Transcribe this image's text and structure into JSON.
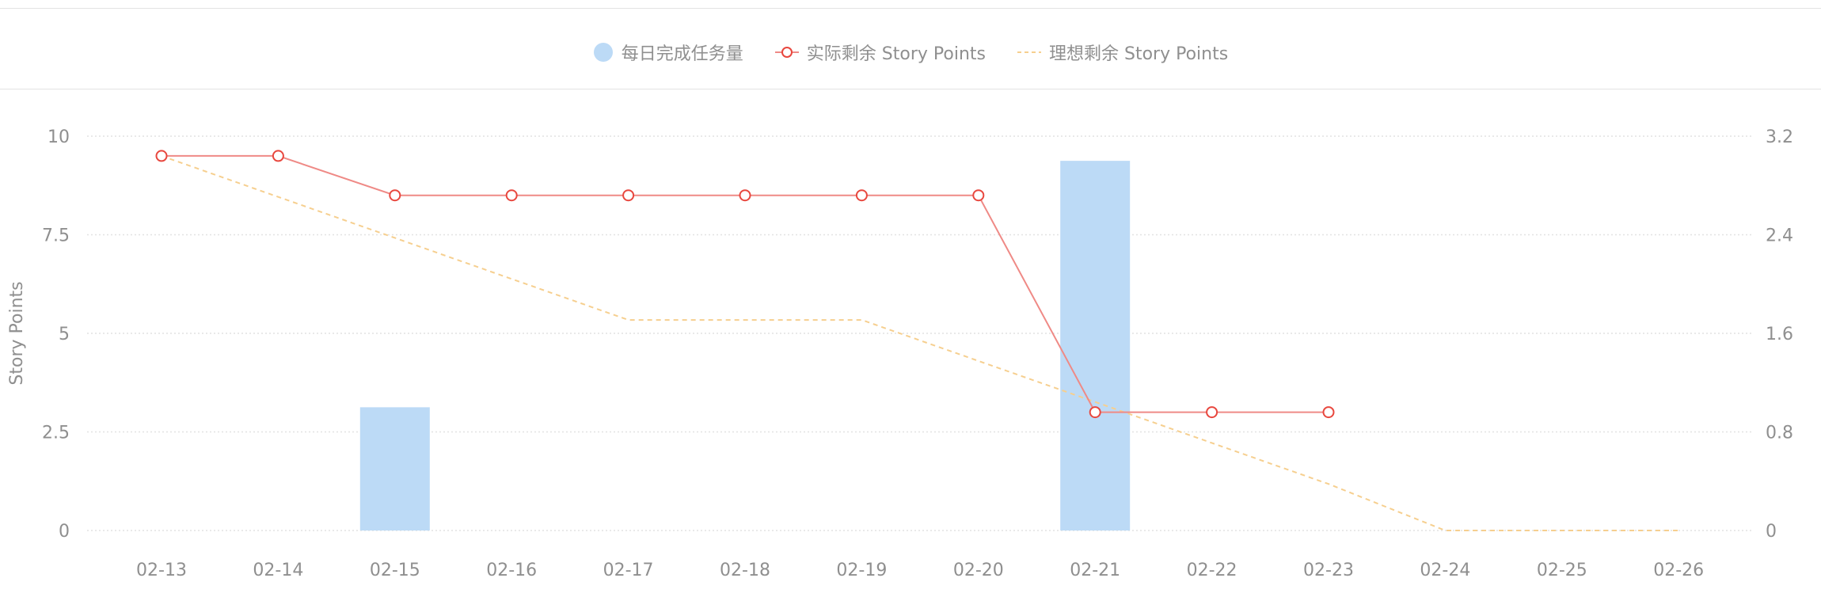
{
  "legend": {
    "items": [
      {
        "label": "每日完成任务量",
        "type": "bar"
      },
      {
        "label": "实际剩余 Story Points",
        "type": "line"
      },
      {
        "label": "理想剩余 Story Points",
        "type": "dashed"
      }
    ]
  },
  "colors": {
    "bar": "#bcdaf6",
    "actual": "#ef8a86",
    "actual_marker": "#e8473e",
    "ideal": "#f6cf8f",
    "grid": "#e2e2e2",
    "tick_text": "#8f8f8f"
  },
  "chart_data": {
    "type": "bar",
    "categories": [
      "02-13",
      "02-14",
      "02-15",
      "02-16",
      "02-17",
      "02-18",
      "02-19",
      "02-20",
      "02-21",
      "02-22",
      "02-23",
      "02-24",
      "02-25",
      "02-26"
    ],
    "y_left": {
      "label": "Story Points",
      "ticks": [
        "0",
        "2.5",
        "5",
        "7.5",
        "10"
      ],
      "min": 0,
      "max": 10
    },
    "y_right": {
      "label": "",
      "ticks": [
        "0",
        "0.8",
        "1.6",
        "2.4",
        "3.2"
      ],
      "min": 0,
      "max": 3.2
    },
    "grid": true,
    "legend_position": "top-center",
    "series": [
      {
        "name": "每日完成任务量",
        "type": "bar",
        "axis": "right",
        "values": [
          0,
          0,
          1,
          0,
          0,
          0,
          0,
          0,
          3,
          0,
          0,
          0,
          0,
          0
        ]
      },
      {
        "name": "实际剩余 Story Points",
        "type": "line",
        "axis": "left",
        "values": [
          9.5,
          9.5,
          8.5,
          8.5,
          8.5,
          8.5,
          8.5,
          8.5,
          3,
          3,
          3,
          null,
          null,
          null
        ]
      },
      {
        "name": "理想剩余 Story Points",
        "type": "line-dashed",
        "axis": "left",
        "values": [
          9.5,
          8.46,
          7.42,
          6.38,
          5.34,
          5.34,
          5.34,
          4.3,
          3.26,
          2.22,
          1.18,
          0,
          0,
          0
        ]
      }
    ]
  }
}
